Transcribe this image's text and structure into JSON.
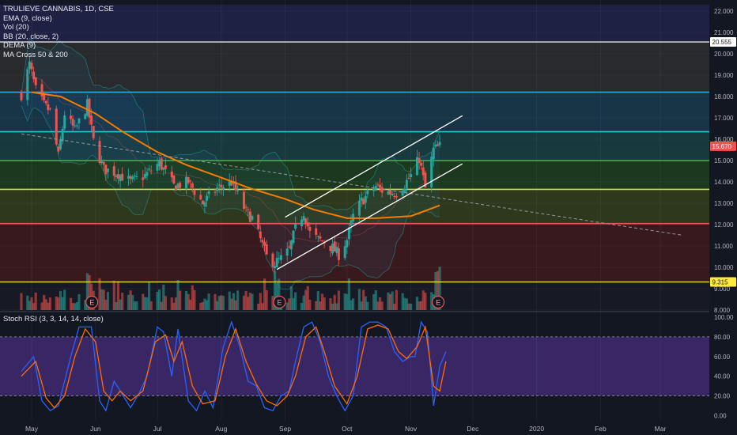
{
  "symbol": "TRULIEVE CANNABIS, 1D, CSE",
  "indicators": [
    "EMA (9, close)",
    "Vol (20)",
    "BB (20, close, 2)",
    "DEMA (9)",
    "MA Cross 50 & 200"
  ],
  "stoch_label": "Stoch RSI (3, 3, 14, 14, close)",
  "price_badges": [
    {
      "text": "20.555",
      "value": 20.555,
      "bg": "#ffffff",
      "fg": "#131722"
    },
    {
      "text": "15.670",
      "value": 15.67,
      "bg": "#ef5350",
      "fg": "#ffffff"
    },
    {
      "text": "9.315",
      "value": 9.315,
      "bg": "#ffeb3b",
      "fg": "#131722"
    }
  ],
  "earnings_marker": "E",
  "colors": {
    "background": "#131722",
    "up": "#26a69a",
    "down": "#ef5350",
    "ma50": "#f57c00",
    "stoch_k": "#2962ff",
    "stoch_d": "#ff6d00",
    "stoch_band": "#673ab7"
  },
  "chart_data": [
    {
      "type": "candlestick",
      "title": "TRULIEVE CANNABIS, 1D, CSE",
      "x_ticks": [
        "May",
        "Jun",
        "Jul",
        "Aug",
        "Sep",
        "Oct",
        "Nov",
        "Dec",
        "2020",
        "Feb",
        "Mar"
      ],
      "y_ticks": [
        "22.000",
        "21.000",
        "20.000",
        "19.000",
        "18.000",
        "17.000",
        "16.000",
        "15.000",
        "14.000",
        "13.000",
        "12.000",
        "11.000",
        "10.000",
        "9.000",
        "8.000"
      ],
      "ylim": [
        8,
        22.3
      ],
      "horizontal_levels": [
        {
          "value": 20.555,
          "color": "#c8c8c8"
        },
        {
          "value": 18.2,
          "color": "#3aa3e3"
        },
        {
          "value": 16.35,
          "color": "#26c6da"
        },
        {
          "value": 15.0,
          "color": "#4caf50"
        },
        {
          "value": 13.65,
          "color": "#cddc39"
        },
        {
          "value": 12.05,
          "color": "#ef5350"
        },
        {
          "value": 9.315,
          "color": "#ffeb3b"
        }
      ],
      "channel_lines": [
        {
          "from": [
            "Sep 1",
            12.35
          ],
          "to": [
            "Nov 26",
            17.1
          ]
        },
        {
          "from": [
            "Aug 28",
            9.9
          ],
          "to": [
            "Nov 26",
            14.85
          ]
        }
      ],
      "trend_line_dashed": {
        "from": [
          "Apr 26",
          16.25
        ],
        "to": [
          "Mar 12",
          11.5
        ]
      },
      "price_anchors": [
        [
          "Apr 26",
          18.1
        ],
        [
          "Apr 30",
          19.5
        ],
        [
          "May 3",
          18.3
        ],
        [
          "May 7",
          17.6
        ],
        [
          "May 10",
          17.3
        ],
        [
          "May 14",
          15.2
        ],
        [
          "May 17",
          17.2
        ],
        [
          "May 22",
          16.4
        ],
        [
          "May 28",
          17.6
        ],
        [
          "May 31",
          15.9
        ],
        [
          "Jun 5",
          14.6
        ],
        [
          "Jun 12",
          14.4
        ],
        [
          "Jun 18",
          14.0
        ],
        [
          "Jun 25",
          14.3
        ],
        [
          "Jul 2",
          14.9
        ],
        [
          "Jul 9",
          13.8
        ],
        [
          "Jul 16",
          14.0
        ],
        [
          "Jul 23",
          13.0
        ],
        [
          "Jul 30",
          13.7
        ],
        [
          "Aug 6",
          14.0
        ],
        [
          "Aug 13",
          12.6
        ],
        [
          "Aug 16",
          12.3
        ],
        [
          "Aug 20",
          11.3
        ],
        [
          "Aug 23",
          10.5
        ],
        [
          "Aug 27",
          10.2
        ],
        [
          "Aug 30",
          10.4
        ],
        [
          "Sep 3",
          10.8
        ],
        [
          "Sep 6",
          11.8
        ],
        [
          "Sep 10",
          12.6
        ],
        [
          "Sep 13",
          11.6
        ],
        [
          "Sep 17",
          11.3
        ],
        [
          "Sep 20",
          11.2
        ],
        [
          "Sep 24",
          10.9
        ],
        [
          "Sep 27",
          10.6
        ],
        [
          "Oct 1",
          11.3
        ],
        [
          "Oct 4",
          12.4
        ],
        [
          "Oct 8",
          13.1
        ],
        [
          "Oct 11",
          13.4
        ],
        [
          "Oct 15",
          13.8
        ],
        [
          "Oct 18",
          13.6
        ],
        [
          "Oct 22",
          13.5
        ],
        [
          "Oct 25",
          13.5
        ],
        [
          "Oct 29",
          13.9
        ],
        [
          "Nov 1",
          14.3
        ],
        [
          "Nov 5",
          15.1
        ],
        [
          "Nov 8",
          13.7
        ],
        [
          "Nov 12",
          15.5
        ],
        [
          "Nov 15",
          15.67
        ]
      ],
      "ma50": [
        [
          "May 1",
          18.2
        ],
        [
          "May 15",
          18.0
        ],
        [
          "Jun 1",
          17.2
        ],
        [
          "Jun 15",
          16.3
        ],
        [
          "Jul 1",
          15.4
        ],
        [
          "Jul 15",
          14.8
        ],
        [
          "Aug 1",
          14.2
        ],
        [
          "Aug 15",
          13.7
        ],
        [
          "Sep 1",
          13.2
        ],
        [
          "Sep 15",
          12.7
        ],
        [
          "Oct 1",
          12.3
        ],
        [
          "Oct 15",
          12.3
        ],
        [
          "Nov 1",
          12.4
        ],
        [
          "Nov 15",
          12.9
        ]
      ]
    },
    {
      "type": "line",
      "title": "Stoch RSI (3, 3, 14, 14, close)",
      "y_ticks": [
        "100.00",
        "80.00",
        "60.00",
        "40.00",
        "20.00",
        "0.00"
      ],
      "ylim": [
        -5,
        102
      ],
      "band": [
        20,
        80
      ],
      "series": [
        {
          "name": "K",
          "values": [
            [
              "Apr 26",
              45
            ],
            [
              "May 2",
              60
            ],
            [
              "May 6",
              15
            ],
            [
              "May 10",
              5
            ],
            [
              "May 14",
              10
            ],
            [
              "May 20",
              60
            ],
            [
              "May 24",
              90
            ],
            [
              "May 30",
              90
            ],
            [
              "Jun 3",
              15
            ],
            [
              "Jun 6",
              5
            ],
            [
              "Jun 10",
              35
            ],
            [
              "Jun 13",
              25
            ],
            [
              "Jun 18",
              8
            ],
            [
              "Jun 22",
              22
            ],
            [
              "Jun 26",
              40
            ],
            [
              "Jul 1",
              90
            ],
            [
              "Jul 4",
              85
            ],
            [
              "Jul 8",
              40
            ],
            [
              "Jul 11",
              88
            ],
            [
              "Jul 16",
              15
            ],
            [
              "Jul 20",
              5
            ],
            [
              "Jul 24",
              25
            ],
            [
              "Jul 28",
              8
            ],
            [
              "Aug 2",
              70
            ],
            [
              "Aug 6",
              95
            ],
            [
              "Aug 10",
              70
            ],
            [
              "Aug 14",
              35
            ],
            [
              "Aug 18",
              30
            ],
            [
              "Aug 22",
              8
            ],
            [
              "Aug 26",
              5
            ],
            [
              "Aug 30",
              20
            ],
            [
              "Sep 3",
              25
            ],
            [
              "Sep 6",
              55
            ],
            [
              "Sep 10",
              90
            ],
            [
              "Sep 14",
              95
            ],
            [
              "Sep 18",
              75
            ],
            [
              "Sep 22",
              40
            ],
            [
              "Sep 26",
              20
            ],
            [
              "Sep 30",
              5
            ],
            [
              "Oct 4",
              20
            ],
            [
              "Oct 8",
              90
            ],
            [
              "Oct 12",
              95
            ],
            [
              "Oct 16",
              95
            ],
            [
              "Oct 20",
              90
            ],
            [
              "Oct 24",
              65
            ],
            [
              "Oct 28",
              55
            ],
            [
              "Nov 1",
              60
            ],
            [
              "Nov 3",
              60
            ],
            [
              "Nov 6",
              95
            ],
            [
              "Nov 9",
              85
            ],
            [
              "Nov 12",
              10
            ],
            [
              "Nov 15",
              50
            ],
            [
              "Nov 18",
              65
            ]
          ]
        },
        {
          "name": "D",
          "values": [
            [
              "Apr 26",
              40
            ],
            [
              "May 3",
              55
            ],
            [
              "May 8",
              18
            ],
            [
              "May 12",
              8
            ],
            [
              "May 17",
              20
            ],
            [
              "May 22",
              60
            ],
            [
              "May 27",
              88
            ],
            [
              "Jun 1",
              75
            ],
            [
              "Jun 5",
              25
            ],
            [
              "Jun 9",
              15
            ],
            [
              "Jun 13",
              25
            ],
            [
              "Jun 18",
              15
            ],
            [
              "Jun 24",
              25
            ],
            [
              "Jun 30",
              75
            ],
            [
              "Jul 5",
              82
            ],
            [
              "Jul 9",
              55
            ],
            [
              "Jul 13",
              75
            ],
            [
              "Jul 18",
              30
            ],
            [
              "Jul 23",
              12
            ],
            [
              "Jul 29",
              15
            ],
            [
              "Aug 3",
              60
            ],
            [
              "Aug 8",
              88
            ],
            [
              "Aug 13",
              55
            ],
            [
              "Aug 18",
              32
            ],
            [
              "Aug 23",
              15
            ],
            [
              "Aug 28",
              10
            ],
            [
              "Sep 2",
              20
            ],
            [
              "Sep 6",
              40
            ],
            [
              "Sep 11",
              80
            ],
            [
              "Sep 16",
              90
            ],
            [
              "Sep 20",
              65
            ],
            [
              "Sep 25",
              30
            ],
            [
              "Oct 1",
              12
            ],
            [
              "Oct 6",
              40
            ],
            [
              "Oct 11",
              88
            ],
            [
              "Oct 16",
              92
            ],
            [
              "Oct 21",
              88
            ],
            [
              "Oct 26",
              65
            ],
            [
              "Oct 30",
              58
            ],
            [
              "Nov 4",
              70
            ],
            [
              "Nov 8",
              90
            ],
            [
              "Nov 12",
              30
            ],
            [
              "Nov 15",
              25
            ],
            [
              "Nov 18",
              55
            ]
          ]
        }
      ]
    }
  ]
}
